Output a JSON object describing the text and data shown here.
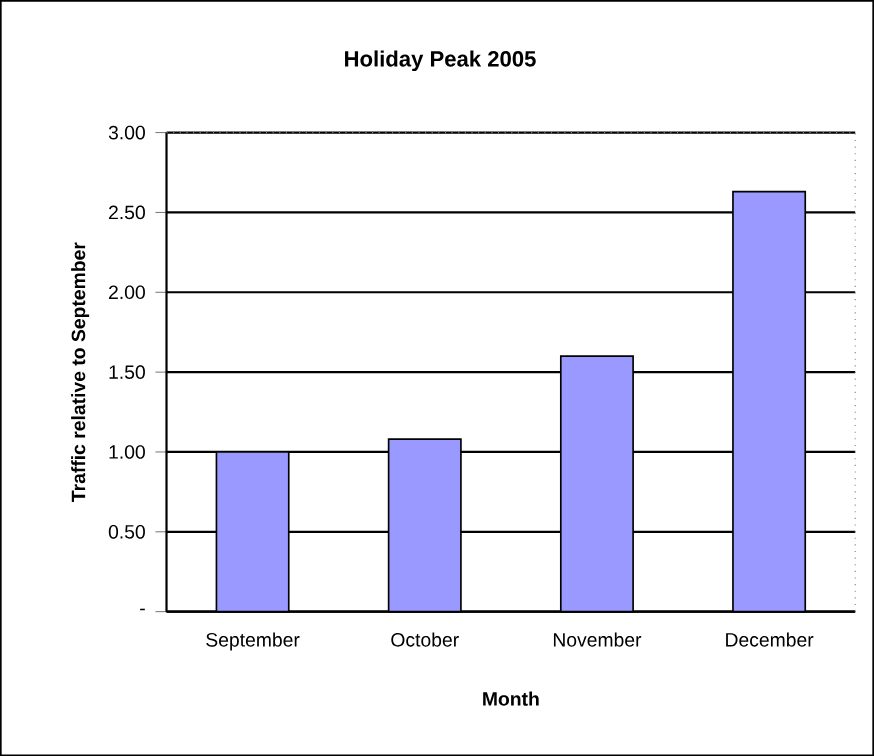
{
  "chart_data": {
    "type": "bar",
    "title": "Holiday Peak 2005",
    "xlabel": "Month",
    "ylabel": "Traffic relative to September",
    "categories": [
      "September",
      "October",
      "November",
      "December"
    ],
    "values": [
      1.0,
      1.08,
      1.6,
      2.63
    ],
    "color": "#9999ff",
    "ylim": [
      0,
      3
    ],
    "yticks": [
      {
        "value": 0,
        "label": "-"
      },
      {
        "value": 0.5,
        "label": "0.50"
      },
      {
        "value": 1,
        "label": "1.00"
      },
      {
        "value": 1.5,
        "label": "1.50"
      },
      {
        "value": 2,
        "label": "2.00"
      },
      {
        "value": 2.5,
        "label": "2.50"
      },
      {
        "value": 3,
        "label": "3.00"
      }
    ],
    "grid": "y"
  }
}
